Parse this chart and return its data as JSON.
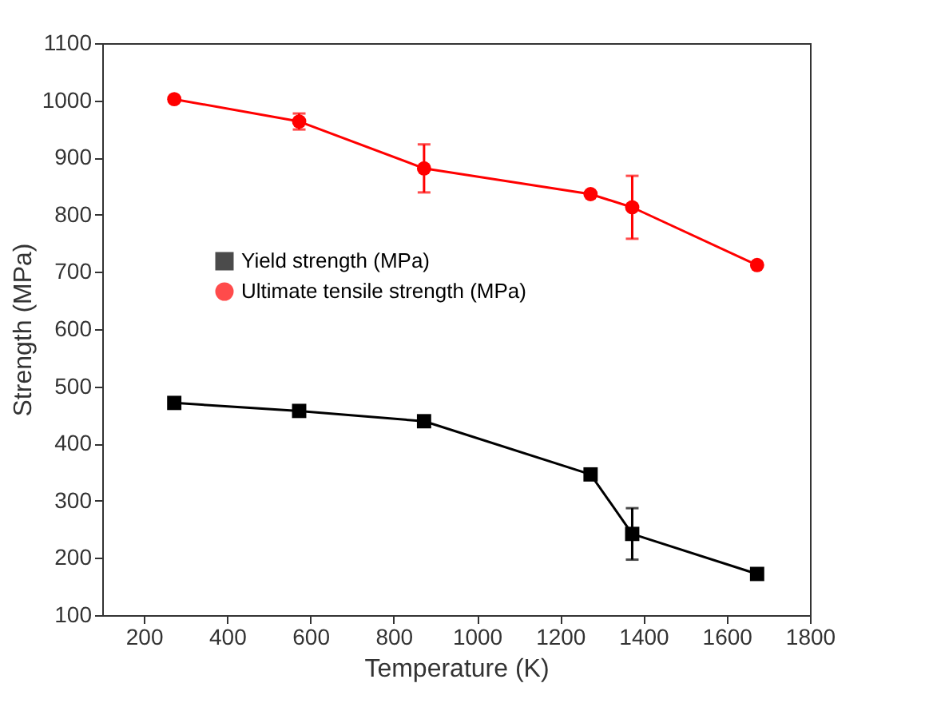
{
  "chart_data": {
    "type": "line",
    "xlabel": "Temperature (K)",
    "ylabel": "Strength (MPa)",
    "x": [
      273,
      573,
      873,
      1273,
      1373,
      1673
    ],
    "xlim": [
      100,
      1800
    ],
    "xticks": [
      200,
      400,
      600,
      800,
      1000,
      1200,
      1400,
      1600,
      1800
    ],
    "ylim": [
      100,
      1100
    ],
    "yticks": [
      100,
      200,
      300,
      400,
      500,
      600,
      700,
      800,
      900,
      1000,
      1100
    ],
    "grid": false,
    "legend": "top",
    "series": [
      {
        "name": "Yield strength (MPa)",
        "color": "#000000",
        "marker": "square",
        "values": [
          471,
          457,
          439,
          346,
          242,
          172
        ],
        "errors": [
          null,
          null,
          null,
          null,
          45,
          null
        ]
      },
      {
        "name": "Ultimate tensile strength (MPa)",
        "color": "#ff0000",
        "marker": "circle",
        "values": [
          1002,
          963,
          881,
          836,
          813,
          712
        ],
        "errors": [
          null,
          14,
          42,
          null,
          55,
          null
        ]
      }
    ]
  }
}
